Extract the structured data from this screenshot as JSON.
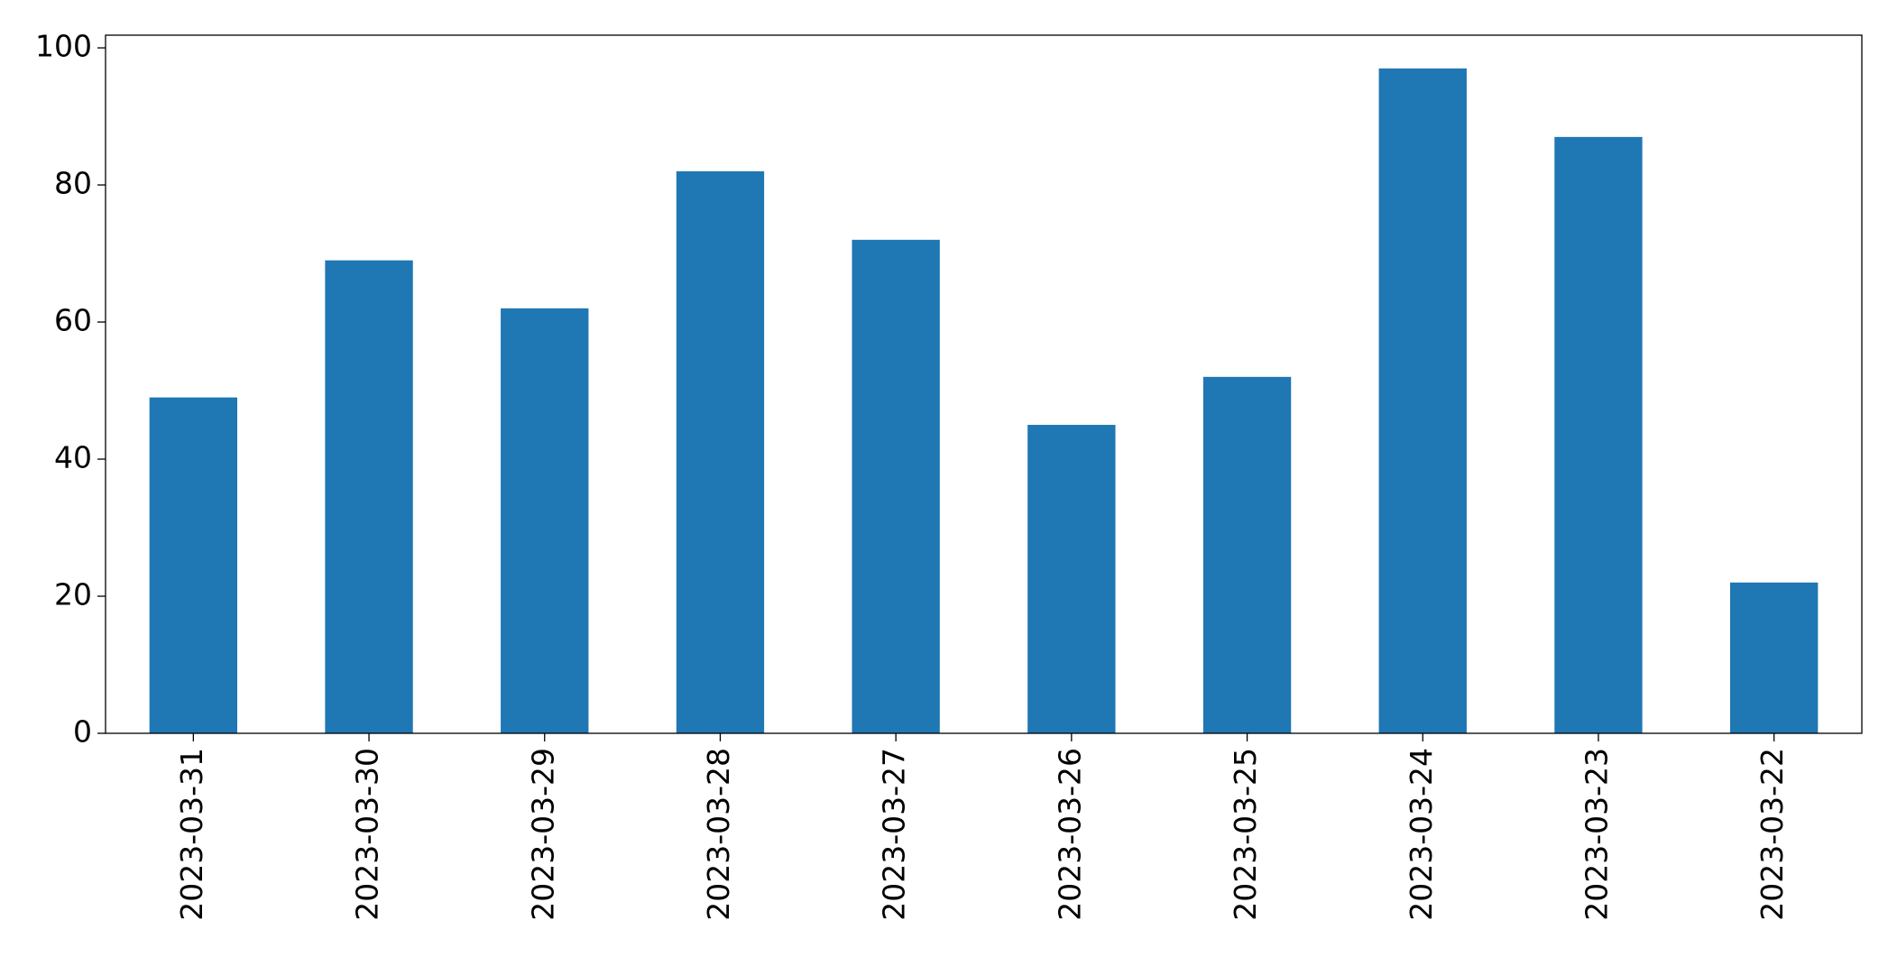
{
  "chart_data": {
    "type": "bar",
    "categories": [
      "2023-03-31",
      "2023-03-30",
      "2023-03-29",
      "2023-03-28",
      "2023-03-27",
      "2023-03-26",
      "2023-03-25",
      "2023-03-24",
      "2023-03-23",
      "2023-03-22"
    ],
    "values": [
      49,
      69,
      62,
      82,
      72,
      45,
      52,
      97,
      87,
      22
    ],
    "color": "#1f77b4",
    "ylim": [
      0,
      101.85
    ],
    "yticks": [
      0,
      20,
      40,
      60,
      80,
      100
    ],
    "grid": false
  }
}
